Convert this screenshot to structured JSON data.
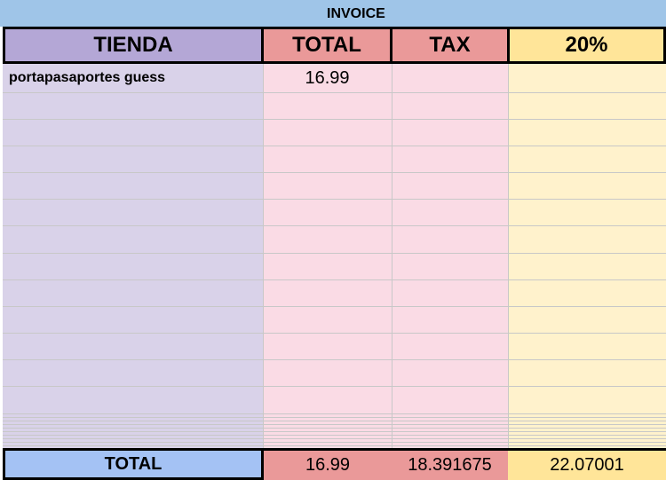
{
  "header": {
    "title": "INVOICE"
  },
  "table": {
    "columns": [
      "TIENDA",
      "TOTAL",
      "TAX",
      "20%"
    ],
    "rows": [
      [
        "portapasaportes guess",
        16.99
      ]
    ],
    "totals": [
      "TOTAL",
      16.99,
      18.391675,
      22.07001
    ]
  }
}
